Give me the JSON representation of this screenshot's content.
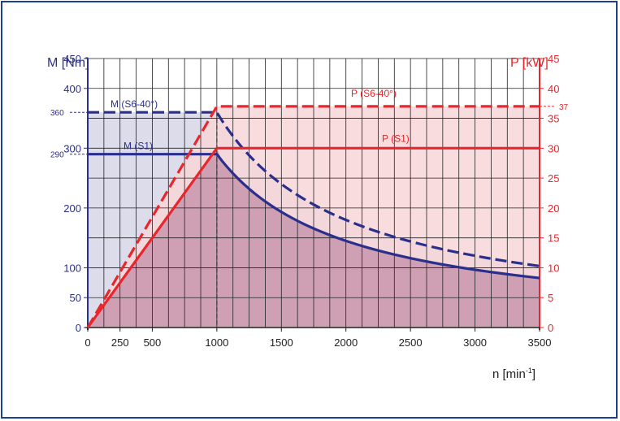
{
  "chart_data": {
    "type": "line",
    "xlabel_main": "n [min",
    "xlabel_sup": "-1",
    "xlabel_close": "]",
    "ylabel_left": "M [Nm]",
    "ylabel_right": "P [kW]",
    "xlim": [
      0,
      3500
    ],
    "ylim_left": [
      0,
      450
    ],
    "ylim_right": [
      0,
      45
    ],
    "x_ticks": [
      0,
      250,
      500,
      1000,
      1500,
      2000,
      2500,
      3000,
      3500
    ],
    "x_tick_labels": [
      "0",
      "250",
      "500",
      "1000",
      "1500",
      "2000",
      "2500",
      "3000",
      "3500"
    ],
    "y_left_ticks": [
      0,
      50,
      100,
      200,
      300,
      400,
      450
    ],
    "y_left_tick_labels": [
      "0",
      "50",
      "100",
      "200",
      "300",
      "400",
      "450"
    ],
    "y_right_ticks": [
      0,
      5,
      10,
      15,
      20,
      25,
      30,
      35,
      40,
      45
    ],
    "y_right_tick_labels": [
      "0",
      "5",
      "10",
      "15",
      "20",
      "25",
      "30",
      "35",
      "40",
      "45"
    ],
    "grid": true,
    "markers": {
      "left": {
        "value": 360,
        "label": "360"
      },
      "left2": {
        "value": 290,
        "label": "290"
      },
      "right": {
        "value": 37,
        "label": "37"
      }
    },
    "series": [
      {
        "name": "M (S6-40°)",
        "axis": "left",
        "style": "dashed",
        "color": "#2b2f8c",
        "x": [
          0,
          1000,
          1250,
          1500,
          2000,
          2500,
          3000,
          3500
        ],
        "y": [
          360,
          360,
          288,
          240,
          180,
          144,
          120,
          103
        ]
      },
      {
        "name": "M (S1)",
        "axis": "left",
        "style": "solid",
        "color": "#2b2f8c",
        "x": [
          0,
          1000,
          1250,
          1500,
          2000,
          2500,
          3000,
          3500
        ],
        "y": [
          290,
          290,
          232,
          193,
          145,
          116,
          97,
          83
        ]
      },
      {
        "name": "P (S6-40°)",
        "axis": "right",
        "style": "dashed",
        "color": "#e8262c",
        "x": [
          0,
          1000,
          3500
        ],
        "y": [
          0,
          37,
          37
        ]
      },
      {
        "name": "P (S1)",
        "axis": "right",
        "style": "solid",
        "color": "#e8262c",
        "x": [
          0,
          1000,
          3500
        ],
        "y": [
          0,
          30,
          30
        ]
      }
    ],
    "colors": {
      "torque": "#2b2f8c",
      "power": "#e8262c",
      "torque_fill": "#dcdceb",
      "power_fill": "#f8d6d8",
      "overlap_fill": "#cfa0b4",
      "grid": "#222222",
      "frame": "#1f3f8f"
    }
  }
}
